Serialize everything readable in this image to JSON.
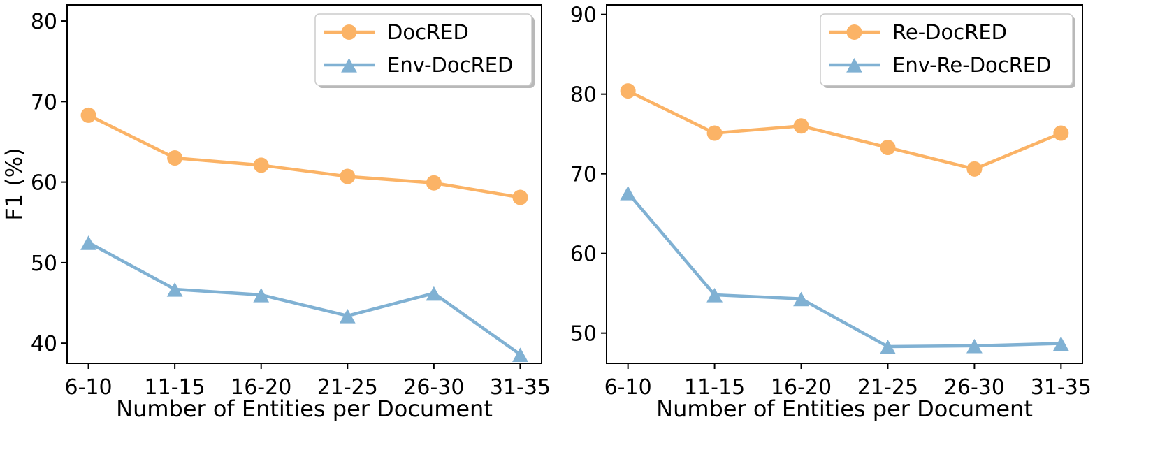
{
  "colors": {
    "orange": "#FBB366",
    "blue": "#80B1D3",
    "axis": "#000000",
    "legend_shadow": "#808080"
  },
  "chart_data": [
    {
      "type": "line",
      "categories": [
        "6-10",
        "11-15",
        "16-20",
        "21-25",
        "26-30",
        "31-35"
      ],
      "xlabel": "Number of Entities per Document",
      "ylabel": "F1 (%)",
      "ylim": [
        37.5,
        82
      ],
      "yticks": [
        40,
        50,
        60,
        70,
        80
      ],
      "legend": "top-right",
      "grid": false,
      "series": [
        {
          "name": "DocRED",
          "values": [
            68.3,
            63.0,
            62.1,
            60.7,
            59.9,
            58.1
          ],
          "marker": "circle",
          "color": "#FBB366"
        },
        {
          "name": "Env-DocRED",
          "values": [
            52.5,
            46.7,
            46.0,
            43.4,
            46.2,
            38.6
          ],
          "marker": "triangle",
          "color": "#80B1D3"
        }
      ]
    },
    {
      "type": "line",
      "categories": [
        "6-10",
        "11-15",
        "16-20",
        "21-25",
        "26-30",
        "31-35"
      ],
      "xlabel": "Number of Entities per Document",
      "ylabel": "",
      "ylim": [
        46.2,
        91.2
      ],
      "yticks": [
        50,
        60,
        70,
        80,
        90
      ],
      "legend": "top-right",
      "grid": false,
      "series": [
        {
          "name": "Re-DocRED",
          "values": [
            80.4,
            75.1,
            76.0,
            73.3,
            70.6,
            75.1
          ],
          "marker": "circle",
          "color": "#FBB366"
        },
        {
          "name": "Env-Re-DocRED",
          "values": [
            67.6,
            54.8,
            54.3,
            48.3,
            48.4,
            48.7
          ],
          "marker": "triangle",
          "color": "#80B1D3"
        }
      ]
    }
  ]
}
